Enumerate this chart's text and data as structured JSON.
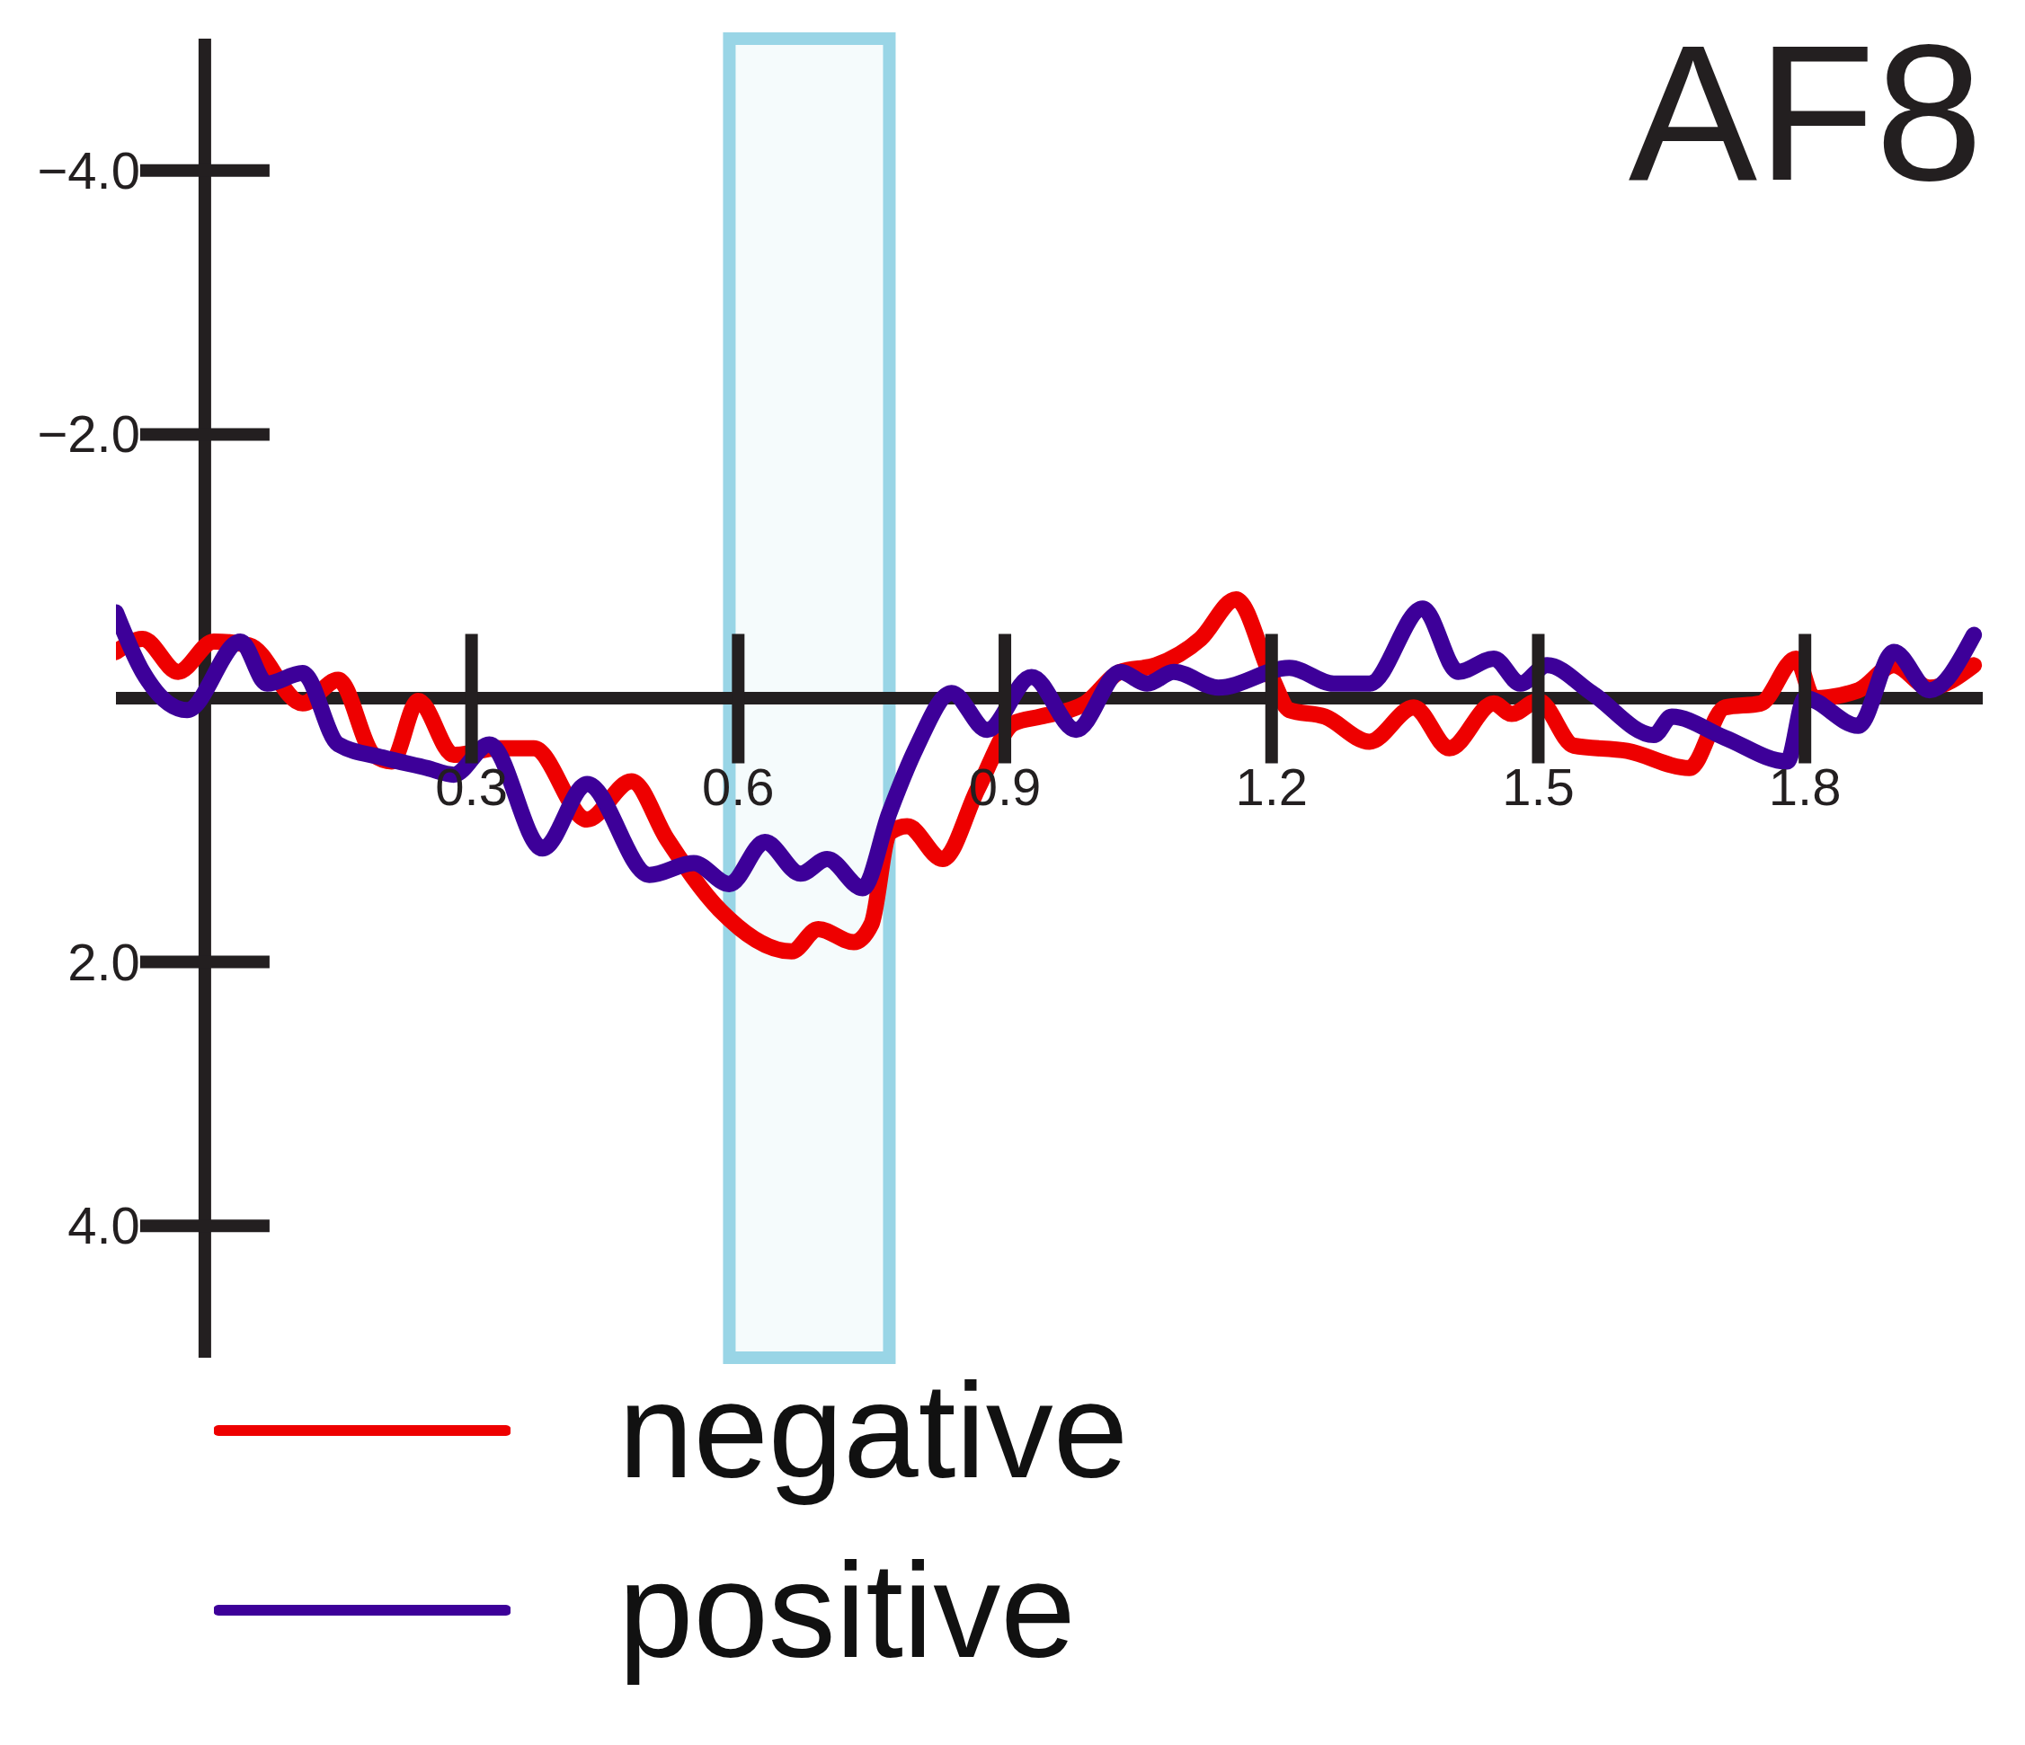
{
  "chart_data": {
    "type": "line",
    "title": "AF8",
    "xlim": [
      -0.1,
      2.0
    ],
    "xticks": [
      0.3,
      0.6,
      0.9,
      1.2,
      1.5,
      1.8
    ],
    "ylim": [
      5,
      -5
    ],
    "yticks": [
      {
        "value": -4,
        "label": "−4.0"
      },
      {
        "value": -2,
        "label": "−2.0"
      },
      {
        "value": 2,
        "label": "2.0"
      },
      {
        "value": 4,
        "label": "4.0"
      }
    ],
    "grid": false,
    "legend": "bottom left",
    "marker": "none",
    "line_style": "solid",
    "bands": [
      {
        "axis": "x",
        "from": 0.59,
        "to": 0.77,
        "color": "#99d5e6"
      }
    ],
    "series": [
      {
        "name": "negative",
        "color": "#ee0000",
        "x": [
          -0.1,
          -0.07,
          -0.03,
          0.01,
          0.05,
          0.11,
          0.15,
          0.19,
          0.21,
          0.24,
          0.28,
          0.33,
          0.37,
          0.43,
          0.48,
          0.52,
          0.58,
          0.66,
          0.69,
          0.73,
          0.75,
          0.77,
          0.79,
          0.83,
          0.87,
          0.91,
          0.94,
          0.99,
          1.03,
          1.07,
          1.12,
          1.16,
          1.2,
          1.22,
          1.26,
          1.31,
          1.36,
          1.4,
          1.45,
          1.47,
          1.5,
          1.54,
          1.6,
          1.67,
          1.71,
          1.75,
          1.79,
          1.81,
          1.86,
          1.9,
          1.94,
          1.99
        ],
        "values": [
          -0.35,
          -0.45,
          -0.2,
          -0.43,
          -0.4,
          0.04,
          -0.14,
          0.43,
          0.48,
          0.02,
          0.43,
          0.38,
          0.38,
          0.92,
          0.63,
          1.07,
          1.61,
          1.92,
          1.75,
          1.85,
          1.71,
          1.02,
          0.97,
          1.22,
          0.68,
          0.19,
          0.14,
          0.04,
          -0.2,
          -0.25,
          -0.45,
          -0.75,
          -0.16,
          0.09,
          0.14,
          0.33,
          0.07,
          0.38,
          0.04,
          0.12,
          0.02,
          0.36,
          0.4,
          0.53,
          0.07,
          0.04,
          -0.3,
          0,
          -0.06,
          -0.25,
          -0.08,
          -0.25
        ]
      },
      {
        "name": "positive",
        "color": "#3d0099",
        "x": [
          -0.1,
          -0.07,
          -0.02,
          0.04,
          0.07,
          0.11,
          0.15,
          0.2,
          0.25,
          0.28,
          0.32,
          0.38,
          0.43,
          0.5,
          0.55,
          0.59,
          0.63,
          0.67,
          0.7,
          0.74,
          0.77,
          0.8,
          0.84,
          0.88,
          0.93,
          0.98,
          1.03,
          1.06,
          1.09,
          1.14,
          1.22,
          1.27,
          1.31,
          1.37,
          1.41,
          1.45,
          1.48,
          1.51,
          1.56,
          1.63,
          1.65,
          1.71,
          1.78,
          1.8,
          1.86,
          1.9,
          1.94,
          1.99
        ],
        "values": [
          -0.65,
          -0.2,
          0.09,
          -0.43,
          -0.11,
          -0.19,
          0.35,
          0.45,
          0.53,
          0.58,
          0.35,
          1.14,
          0.65,
          1.34,
          1.25,
          1.41,
          1.09,
          1.33,
          1.22,
          1.44,
          0.87,
          0.38,
          -0.04,
          0.24,
          -0.16,
          0.24,
          -0.2,
          -0.11,
          -0.2,
          -0.08,
          -0.23,
          -0.11,
          -0.11,
          -0.68,
          -0.2,
          -0.3,
          -0.11,
          -0.25,
          -0.04,
          0.28,
          0.14,
          0.3,
          0.48,
          0,
          0.21,
          -0.35,
          -0.06,
          -0.48
        ]
      }
    ]
  }
}
